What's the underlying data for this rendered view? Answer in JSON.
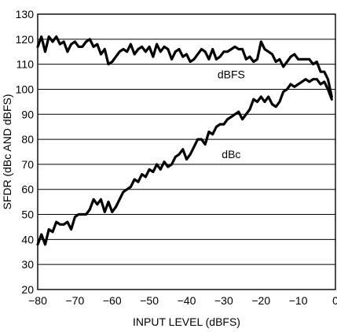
{
  "chart_data": {
    "type": "line",
    "xlabel": "INPUT LEVEL (dBFS)",
    "ylabel": "SFDR (dBc AND dBFS)",
    "xlim": [
      -80,
      0
    ],
    "ylim": [
      20,
      130
    ],
    "xticks": [
      -80,
      -70,
      -60,
      -50,
      -40,
      -30,
      -20,
      -10,
      0
    ],
    "xtick_labels": [
      "−80",
      "−70",
      "−60",
      "−50",
      "−40",
      "−30",
      "−20",
      "−10",
      "0"
    ],
    "yticks": [
      20,
      30,
      40,
      50,
      60,
      70,
      80,
      90,
      100,
      110,
      120,
      130
    ],
    "ytick_labels": [
      "20",
      "30",
      "40",
      "50",
      "60",
      "70",
      "80",
      "90",
      "100",
      "110",
      "120",
      "130"
    ],
    "grid": "horizontal",
    "series": [
      {
        "name": "dBFS",
        "label_at": [
          -28,
          106
        ],
        "x": [
          -80,
          -79,
          -78,
          -77,
          -76,
          -75,
          -74,
          -73,
          -72,
          -71,
          -70,
          -69,
          -68,
          -67,
          -66,
          -65,
          -64,
          -63,
          -62,
          -61,
          -60,
          -59,
          -58,
          -57,
          -56,
          -55,
          -54,
          -53,
          -52,
          -51,
          -50,
          -49,
          -48,
          -47,
          -46,
          -45,
          -44,
          -43,
          -42,
          -41,
          -40,
          -39,
          -38,
          -37,
          -36,
          -35,
          -34,
          -33,
          -32,
          -31,
          -30,
          -29,
          -28,
          -27,
          -26,
          -25,
          -24,
          -23,
          -22,
          -21,
          -20,
          -19,
          -18,
          -17,
          -16,
          -15,
          -14,
          -13,
          -12,
          -11,
          -10,
          -9,
          -8,
          -7,
          -6,
          -5,
          -4,
          -3,
          -2,
          -1
        ],
        "values": [
          117,
          121,
          115,
          121,
          119,
          121,
          118,
          119,
          115,
          118,
          119,
          117,
          117,
          119,
          120,
          117,
          118,
          114,
          116,
          110,
          111,
          113,
          115,
          116,
          115,
          118,
          114,
          116,
          117,
          115,
          117,
          113,
          118,
          115,
          117,
          116,
          112,
          115,
          116,
          113,
          114,
          111,
          112,
          114,
          116,
          115,
          112,
          116,
          112,
          113,
          115,
          115,
          116,
          117,
          116,
          116,
          112,
          113,
          111,
          112,
          119,
          116,
          115,
          114,
          111,
          112,
          109,
          111,
          113,
          114,
          112,
          112,
          112,
          112,
          110,
          111,
          107,
          107,
          104,
          97
        ]
      },
      {
        "name": "dBc",
        "label_at": [
          -28,
          74
        ],
        "x": [
          -80,
          -79,
          -78,
          -77,
          -76,
          -75,
          -74,
          -73,
          -72,
          -71,
          -70,
          -69,
          -68,
          -67,
          -66,
          -65,
          -64,
          -63,
          -62,
          -61,
          -60,
          -59,
          -58,
          -57,
          -56,
          -55,
          -54,
          -53,
          -52,
          -51,
          -50,
          -49,
          -48,
          -47,
          -46,
          -45,
          -44,
          -43,
          -42,
          -41,
          -40,
          -39,
          -38,
          -37,
          -36,
          -35,
          -34,
          -33,
          -32,
          -31,
          -30,
          -29,
          -28,
          -27,
          -26,
          -25,
          -24,
          -23,
          -22,
          -21,
          -20,
          -19,
          -18,
          -17,
          -16,
          -15,
          -14,
          -13,
          -12,
          -11,
          -10,
          -9,
          -8,
          -7,
          -6,
          -5,
          -4,
          -3,
          -2,
          -1
        ],
        "values": [
          38,
          42,
          38,
          44,
          43,
          47,
          46,
          46,
          47,
          44,
          49,
          50,
          50,
          50,
          52,
          56,
          54,
          56,
          51,
          55,
          51,
          53,
          56,
          59,
          60,
          61,
          64,
          63,
          66,
          65,
          68,
          67,
          70,
          68,
          71,
          69,
          70,
          73,
          74,
          76,
          72,
          74,
          77,
          80,
          80,
          78,
          83,
          82,
          85,
          86,
          86,
          88,
          89,
          90,
          91,
          88,
          90,
          92,
          96,
          95,
          97,
          95,
          97,
          94,
          93,
          95,
          99,
          100,
          102,
          101,
          102,
          103,
          104,
          103,
          104,
          104,
          102,
          103,
          100,
          96
        ]
      }
    ]
  }
}
